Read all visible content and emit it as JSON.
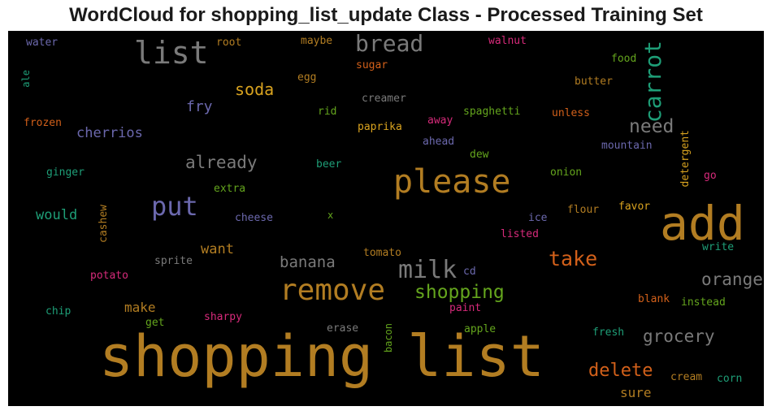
{
  "chart_data": {
    "type": "wordcloud",
    "title": "WordCloud for shopping_list_update Class - Processed Training Set",
    "background": "#000000",
    "palette": {
      "gold": "#b27d22",
      "gray": "#7a7a7a",
      "purple": "#6b68ad",
      "green": "#1e9e77",
      "orange": "#d2601a",
      "pink": "#d62a7a",
      "lime": "#64a51d",
      "yellow": "#d9a31f"
    },
    "words": [
      {
        "text": "shopping list",
        "weight": 1.0,
        "color": "gold"
      },
      {
        "text": "add",
        "weight": 0.7,
        "color": "gold"
      },
      {
        "text": "please",
        "weight": 0.55,
        "color": "gold"
      },
      {
        "text": "remove",
        "weight": 0.5,
        "color": "gold"
      },
      {
        "text": "list",
        "weight": 0.5,
        "color": "gray"
      },
      {
        "text": "put",
        "weight": 0.45,
        "color": "purple"
      },
      {
        "text": "milk",
        "weight": 0.42,
        "color": "gray"
      },
      {
        "text": "carrot",
        "weight": 0.38,
        "color": "green"
      },
      {
        "text": "bread",
        "weight": 0.36,
        "color": "gray"
      },
      {
        "text": "take",
        "weight": 0.33,
        "color": "orange"
      },
      {
        "text": "shopping",
        "weight": 0.32,
        "color": "lime"
      },
      {
        "text": "need",
        "weight": 0.31,
        "color": "gray"
      },
      {
        "text": "delete",
        "weight": 0.3,
        "color": "orange"
      },
      {
        "text": "already",
        "weight": 0.28,
        "color": "gray"
      },
      {
        "text": "orange",
        "weight": 0.27,
        "color": "gray"
      },
      {
        "text": "grocery",
        "weight": 0.27,
        "color": "gray"
      },
      {
        "text": "soda",
        "weight": 0.27,
        "color": "yellow"
      },
      {
        "text": "banana",
        "weight": 0.26,
        "color": "gray"
      },
      {
        "text": "fry",
        "weight": 0.24,
        "color": "purple"
      },
      {
        "text": "cherrios",
        "weight": 0.23,
        "color": "purple"
      },
      {
        "text": "want",
        "weight": 0.23,
        "color": "gold"
      },
      {
        "text": "would",
        "weight": 0.22,
        "color": "green"
      },
      {
        "text": "make",
        "weight": 0.22,
        "color": "gold"
      },
      {
        "text": "sure",
        "weight": 0.22,
        "color": "gold"
      },
      {
        "text": "detergent",
        "weight": 0.18,
        "color": "yellow"
      },
      {
        "text": "cashew",
        "weight": 0.17,
        "color": "gold"
      },
      {
        "text": "water",
        "weight": 0.17,
        "color": "purple"
      },
      {
        "text": "root",
        "weight": 0.17,
        "color": "gold"
      },
      {
        "text": "maybe",
        "weight": 0.17,
        "color": "gold"
      },
      {
        "text": "walnut",
        "weight": 0.17,
        "color": "pink"
      },
      {
        "text": "food",
        "weight": 0.17,
        "color": "lime"
      },
      {
        "text": "ale",
        "weight": 0.16,
        "color": "green"
      },
      {
        "text": "sugar",
        "weight": 0.17,
        "color": "orange"
      },
      {
        "text": "egg",
        "weight": 0.17,
        "color": "gold"
      },
      {
        "text": "butter",
        "weight": 0.17,
        "color": "gold"
      },
      {
        "text": "creamer",
        "weight": 0.17,
        "color": "gray"
      },
      {
        "text": "rid",
        "weight": 0.17,
        "color": "lime"
      },
      {
        "text": "spaghetti",
        "weight": 0.17,
        "color": "lime"
      },
      {
        "text": "unless",
        "weight": 0.17,
        "color": "orange"
      },
      {
        "text": "frozen",
        "weight": 0.17,
        "color": "orange"
      },
      {
        "text": "away",
        "weight": 0.17,
        "color": "pink"
      },
      {
        "text": "paprika",
        "weight": 0.17,
        "color": "yellow"
      },
      {
        "text": "ahead",
        "weight": 0.17,
        "color": "purple"
      },
      {
        "text": "mountain",
        "weight": 0.17,
        "color": "purple"
      },
      {
        "text": "dew",
        "weight": 0.17,
        "color": "lime"
      },
      {
        "text": "beer",
        "weight": 0.17,
        "color": "green"
      },
      {
        "text": "ginger",
        "weight": 0.17,
        "color": "green"
      },
      {
        "text": "onion",
        "weight": 0.17,
        "color": "lime"
      },
      {
        "text": "go",
        "weight": 0.17,
        "color": "pink"
      },
      {
        "text": "extra",
        "weight": 0.17,
        "color": "lime"
      },
      {
        "text": "cheese",
        "weight": 0.17,
        "color": "purple"
      },
      {
        "text": "x",
        "weight": 0.15,
        "color": "lime"
      },
      {
        "text": "flour",
        "weight": 0.17,
        "color": "gold"
      },
      {
        "text": "favor",
        "weight": 0.17,
        "color": "yellow"
      },
      {
        "text": "ice",
        "weight": 0.17,
        "color": "purple"
      },
      {
        "text": "listed",
        "weight": 0.17,
        "color": "pink"
      },
      {
        "text": "write",
        "weight": 0.17,
        "color": "green"
      },
      {
        "text": "sprite",
        "weight": 0.17,
        "color": "gray"
      },
      {
        "text": "tomato",
        "weight": 0.17,
        "color": "gold"
      },
      {
        "text": "potato",
        "weight": 0.17,
        "color": "pink"
      },
      {
        "text": "cd",
        "weight": 0.17,
        "color": "purple"
      },
      {
        "text": "blank",
        "weight": 0.17,
        "color": "orange"
      },
      {
        "text": "instead",
        "weight": 0.17,
        "color": "lime"
      },
      {
        "text": "chip",
        "weight": 0.17,
        "color": "green"
      },
      {
        "text": "sharpy",
        "weight": 0.17,
        "color": "pink"
      },
      {
        "text": "paint",
        "weight": 0.17,
        "color": "pink"
      },
      {
        "text": "get",
        "weight": 0.17,
        "color": "lime"
      },
      {
        "text": "erase",
        "weight": 0.17,
        "color": "gray"
      },
      {
        "text": "bacon",
        "weight": 0.16,
        "color": "lime"
      },
      {
        "text": "apple",
        "weight": 0.17,
        "color": "lime"
      },
      {
        "text": "fresh",
        "weight": 0.17,
        "color": "green"
      },
      {
        "text": "cream",
        "weight": 0.17,
        "color": "gold"
      },
      {
        "text": "corn",
        "weight": 0.17,
        "color": "green"
      }
    ]
  }
}
